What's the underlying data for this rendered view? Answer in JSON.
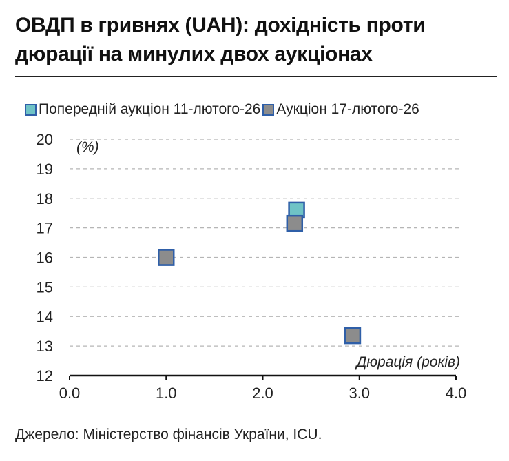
{
  "title": "ОВДП в гривнях (UAH): дохідність проти дюрації на минулих двох аукціонах",
  "source": "Джерело: Міністерство фінансів України, ICU.",
  "chart_data": {
    "type": "scatter",
    "ylabel": "(%)",
    "xlabel": "Дюрація (років)",
    "xlim": [
      0,
      4
    ],
    "ylim": [
      12,
      20
    ],
    "x_ticks": [
      "0.0",
      "1.0",
      "2.0",
      "3.0",
      "4.0"
    ],
    "y_ticks": [
      "12",
      "13",
      "14",
      "15",
      "16",
      "17",
      "18",
      "19",
      "20"
    ],
    "grid": "horizontal-dashed",
    "legend_position": "top",
    "series": [
      {
        "name": "Попередній аукціон 11-лютого-26",
        "color": "#6fc3c6",
        "edge_color": "#2f5fa8",
        "points": [
          {
            "x": 1.0,
            "y": 16.0
          },
          {
            "x": 2.35,
            "y": 17.6
          }
        ]
      },
      {
        "name": "Аукціон 17-лютого-26",
        "color": "#8c8c8c",
        "edge_color": "#2f5fa8",
        "points": [
          {
            "x": 1.0,
            "y": 16.0
          },
          {
            "x": 2.33,
            "y": 17.15
          },
          {
            "x": 2.93,
            "y": 13.35
          }
        ]
      }
    ]
  }
}
